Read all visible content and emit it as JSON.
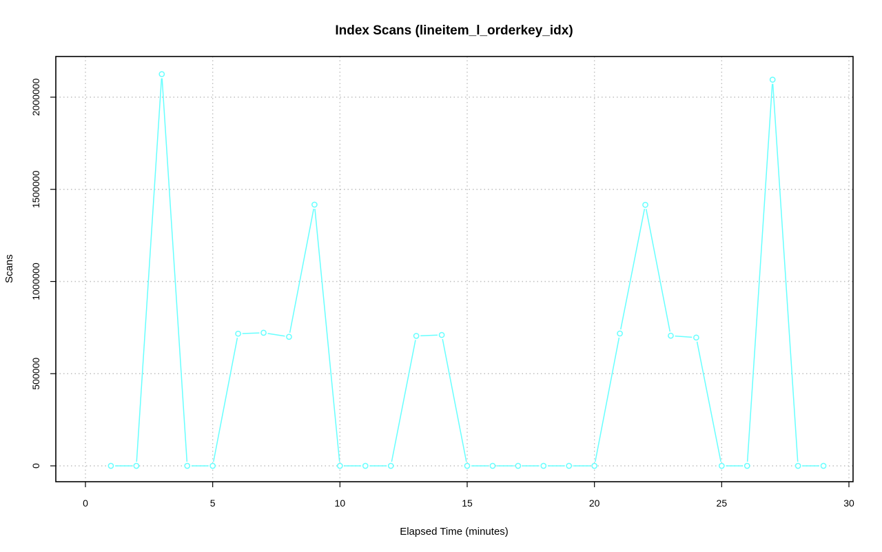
{
  "chart_data": {
    "type": "line",
    "title": "Index Scans (lineitem_l_orderkey_idx)",
    "xlabel": "Elapsed Time (minutes)",
    "ylabel": "Scans",
    "xlim": [
      0,
      30
    ],
    "ylim": [
      0,
      2125000
    ],
    "x_ticks": [
      0,
      5,
      10,
      15,
      20,
      25,
      30
    ],
    "y_ticks": [
      0,
      500000,
      1000000,
      1500000,
      2000000
    ],
    "x_tick_labels": [
      "0",
      "5",
      "10",
      "15",
      "20",
      "25",
      "30"
    ],
    "y_tick_labels": [
      "0",
      "500000",
      "1000000",
      "1500000",
      "2000000"
    ],
    "grid": true,
    "series": [
      {
        "color": "#66ffff",
        "marker": "open-circle",
        "x": [
          1,
          2,
          3,
          4,
          5,
          6,
          7,
          8,
          9,
          10,
          11,
          12,
          13,
          14,
          15,
          16,
          17,
          18,
          19,
          20,
          21,
          22,
          23,
          24,
          25,
          26,
          27,
          28,
          29
        ],
        "values": [
          0,
          0,
          2125000,
          0,
          0,
          717000,
          722000,
          700000,
          1417000,
          0,
          0,
          0,
          705000,
          710000,
          0,
          0,
          0,
          0,
          0,
          0,
          718000,
          1416000,
          706000,
          696000,
          0,
          0,
          2095000,
          0,
          0
        ]
      }
    ]
  }
}
